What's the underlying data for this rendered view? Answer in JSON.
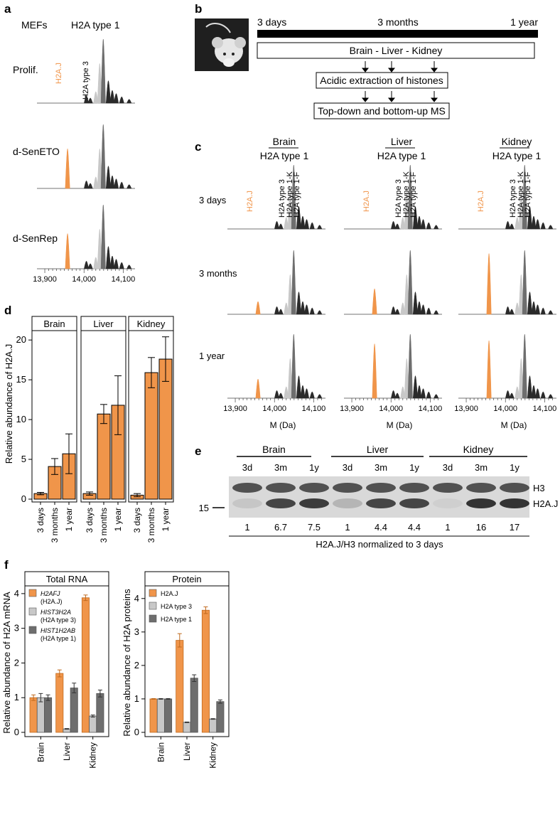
{
  "colors": {
    "orange": "#f0954a",
    "orange_dark": "#c06a1e",
    "light_gray": "#c8c8c8",
    "mid_gray": "#9a9a9a",
    "dark_gray": "#6e6e6e",
    "near_black": "#2a2a2a"
  },
  "panel_letters": {
    "a": "a",
    "b": "b",
    "c": "c",
    "d": "d",
    "e": "e",
    "f": "f"
  },
  "panel_a": {
    "header_left": "MEFs",
    "header_right": "H2A type 1",
    "rows": [
      "Prolif.",
      "d-SenETO",
      "d-SenRep"
    ],
    "peak_label_h2aj": "H2A.J",
    "peak_label_type3": "H2A type 3",
    "x_ticks": [
      "13,900",
      "14,000",
      "14,100"
    ],
    "x_tick_values": [
      13900,
      14000,
      14100
    ],
    "h2aj_relative_height": [
      0.0,
      0.62,
      0.55
    ]
  },
  "panel_b": {
    "timeline": [
      "3 days",
      "3 months",
      "1 year"
    ],
    "box1": "Brain - Liver - Kidney",
    "box2": "Acidic extraction of histones",
    "box3": "Top-down and bottom-up MS"
  },
  "panel_c": {
    "tissues": [
      "Brain",
      "Liver",
      "Kidney"
    ],
    "subtitle": "H2A type 1",
    "rows": [
      "3 days",
      "3 months",
      "1 year"
    ],
    "peak_labels": [
      "H2A.J",
      "H2A type 3",
      "H2A type 1-K",
      "H2A type 1-F"
    ],
    "x_ticks": [
      "13,900",
      "14,000",
      "14,100"
    ],
    "x_tick_values": [
      13900,
      14000,
      14100
    ],
    "xlabel": "M (Da)",
    "h2aj_relative_height": [
      [
        0.0,
        0.0,
        0.0
      ],
      [
        0.2,
        0.4,
        0.95
      ],
      [
        0.3,
        0.85,
        0.9
      ]
    ]
  },
  "chart_data": [
    {
      "type": "bar",
      "panel": "d",
      "ylabel": "Relative abundance of H2A.J",
      "ylim": [
        0,
        21
      ],
      "yticks": [
        0,
        5,
        10,
        15,
        20
      ],
      "facets": [
        {
          "name": "Brain",
          "categories": [
            "3 days",
            "3 months",
            "1 year"
          ],
          "values": [
            0.7,
            4.1,
            5.7
          ],
          "errors": [
            0.15,
            1.0,
            2.5
          ]
        },
        {
          "name": "Liver",
          "categories": [
            "3 days",
            "3 months",
            "1 year"
          ],
          "values": [
            0.7,
            10.7,
            11.8
          ],
          "errors": [
            0.2,
            1.2,
            3.7
          ]
        },
        {
          "name": "Kidney",
          "categories": [
            "3 days",
            "3 months",
            "1 year"
          ],
          "values": [
            0.5,
            15.9,
            17.6
          ],
          "errors": [
            0.2,
            1.9,
            2.8
          ]
        }
      ]
    },
    {
      "type": "bar",
      "panel": "f-left",
      "title": "Total RNA",
      "ylabel": "Relative abundance of H2A mRNA",
      "ylim": [
        0,
        4.1
      ],
      "yticks": [
        0,
        1,
        2,
        3,
        4
      ],
      "categories": [
        "Brain",
        "Liver",
        "Kidney"
      ],
      "legend_position": "top-left",
      "series": [
        {
          "name": "H2AFJ",
          "sub": "(H2A.J)",
          "color_key": "orange",
          "values": [
            1.0,
            1.7,
            3.88
          ],
          "errors": [
            0.08,
            0.1,
            0.08
          ]
        },
        {
          "name": "HIST3H2A",
          "sub": "(H2A type 3)",
          "color_key": "light_gray",
          "values": [
            1.0,
            0.1,
            0.47
          ],
          "errors": [
            0.12,
            0.01,
            0.03
          ]
        },
        {
          "name": "HIST1H2AB",
          "sub": "(H2A type 1)",
          "color_key": "dark_gray",
          "values": [
            1.0,
            1.28,
            1.12
          ],
          "errors": [
            0.08,
            0.14,
            0.1
          ]
        }
      ]
    },
    {
      "type": "bar",
      "panel": "f-right",
      "title": "Protein",
      "ylabel": "Relative abundance of H2A proteins",
      "ylim": [
        0,
        4.25
      ],
      "yticks": [
        0,
        1,
        2,
        3,
        4
      ],
      "categories": [
        "Brain",
        "Liver",
        "Kidney"
      ],
      "legend_position": "top-left",
      "series": [
        {
          "name": "H2A.J",
          "sub": "",
          "color_key": "orange",
          "values": [
            1.0,
            2.75,
            3.65
          ],
          "errors": [
            0.01,
            0.2,
            0.1
          ]
        },
        {
          "name": "H2A type 3",
          "sub": "",
          "color_key": "light_gray",
          "values": [
            1.0,
            0.3,
            0.4
          ],
          "errors": [
            0.01,
            0.01,
            0.01
          ]
        },
        {
          "name": "H2A type 1",
          "sub": "",
          "color_key": "dark_gray",
          "values": [
            1.0,
            1.62,
            0.92
          ],
          "errors": [
            0.01,
            0.1,
            0.05
          ]
        }
      ]
    }
  ],
  "panel_e": {
    "tissues": [
      "Brain",
      "Liver",
      "Kidney"
    ],
    "lanes": [
      "3d",
      "3m",
      "1y",
      "3d",
      "3m",
      "1y",
      "3d",
      "3m",
      "1y"
    ],
    "band_labels": [
      "H3",
      "H2A.J"
    ],
    "marker": "15",
    "ratios": [
      "1",
      "6.7",
      "7.5",
      "1",
      "4.4",
      "4.4",
      "1",
      "16",
      "17"
    ],
    "footer": "H2A.J/H3 normalized to 3 days",
    "h2aj_band_intensity": [
      0.1,
      0.85,
      0.9,
      0.2,
      0.85,
      0.85,
      0.05,
      0.95,
      0.95
    ]
  }
}
